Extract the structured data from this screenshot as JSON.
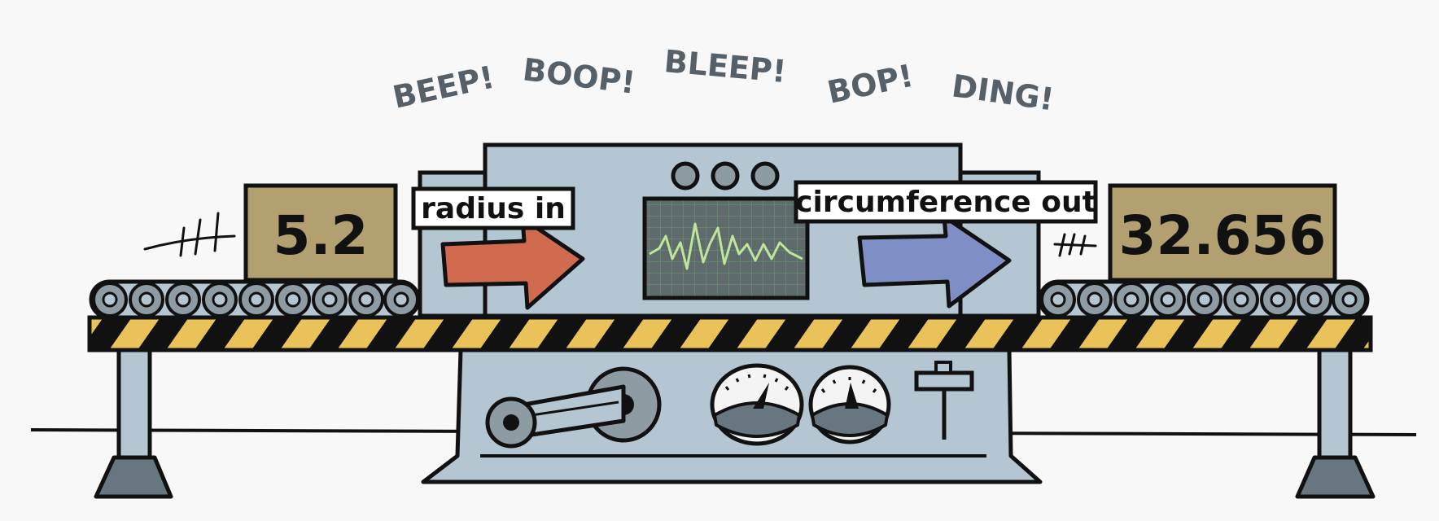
{
  "sound_effects": [
    "BEEP!",
    "BOOP!",
    "BLEEP!",
    "BOP!",
    "DING!"
  ],
  "input": {
    "label": "radius in",
    "value": "5.2"
  },
  "output": {
    "label": "circumference out",
    "value": "32.656"
  },
  "colors": {
    "machine_body": "#b3c6d1",
    "box": "#b3a071",
    "input_arrow": "#d06b4f",
    "output_arrow": "#7f8ec5",
    "hazard_yellow": "#e9c35a",
    "screen": "#5e6a6c",
    "waveform": "#bfe59b",
    "rollers": "#8d9ba3",
    "outline": "#111111"
  },
  "icons": [
    "conveyor-rollers",
    "hazard-stripes",
    "oscilloscope-screen",
    "flywheel-crank",
    "pressure-gauge",
    "lever",
    "motion-lines"
  ]
}
